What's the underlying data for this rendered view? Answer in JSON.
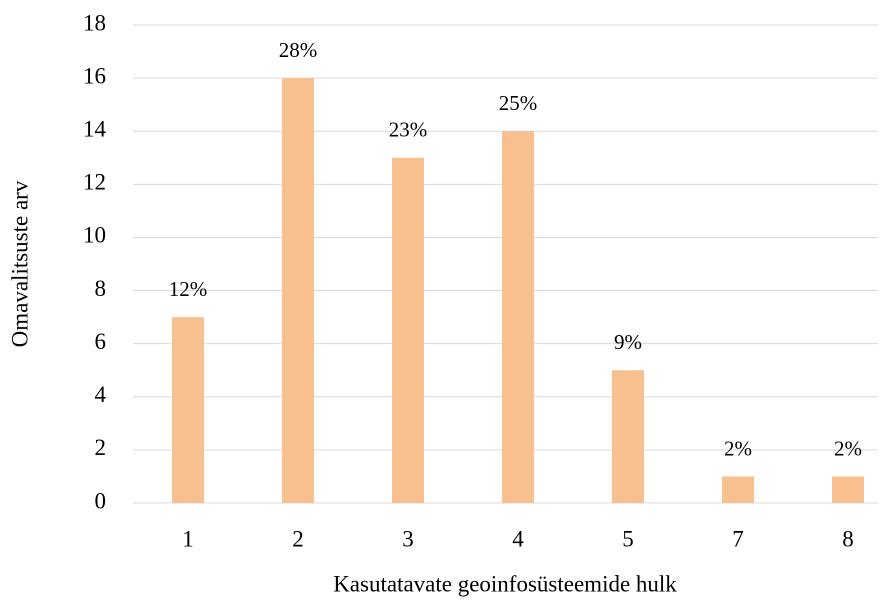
{
  "chart_data": {
    "type": "bar",
    "x_label": "Kasutatavate geoinfosüsteemide hulk",
    "y_label": "Omavalitsuste arv",
    "categories": [
      "1",
      "2",
      "3",
      "4",
      "5",
      "7",
      "8"
    ],
    "values": [
      7,
      16,
      13,
      14,
      5,
      1,
      1
    ],
    "annotations": [
      "12%",
      "28%",
      "23%",
      "25%",
      "9%",
      "2%",
      "2%"
    ],
    "color": "#f8c08e",
    "ylim": [
      0,
      18
    ],
    "yticks": [
      0,
      2,
      4,
      6,
      8,
      10,
      12,
      14,
      16,
      18
    ],
    "grid": true
  }
}
